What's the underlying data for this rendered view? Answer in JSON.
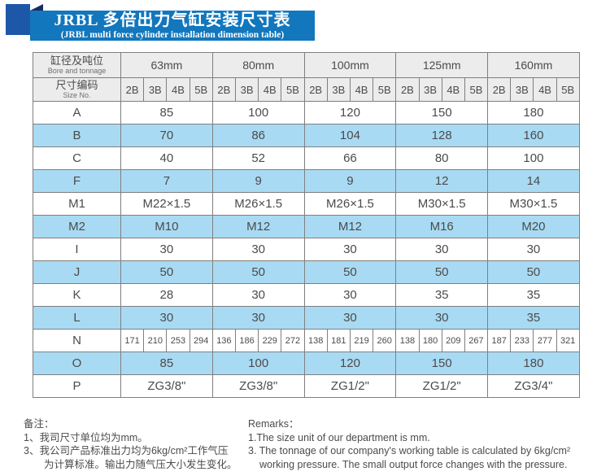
{
  "header": {
    "title_zh": "JRBL 多倍出力气缸安装尺寸表",
    "title_en": "(JRBL multi force cylinder installation dimension table)"
  },
  "table": {
    "corner": {
      "row1_zh": "缸径及吨位",
      "row1_en": "Bore and tonnage",
      "row2_zh": "尺寸编码",
      "row2_en": "Size No."
    },
    "bore_groups": [
      "63mm",
      "80mm",
      "100mm",
      "125mm",
      "160mm"
    ],
    "size_codes": [
      "2B",
      "3B",
      "4B",
      "5B"
    ],
    "rows": [
      {
        "label": "A",
        "span": "group",
        "values": [
          "85",
          "100",
          "120",
          "150",
          "180"
        ]
      },
      {
        "label": "B",
        "span": "group",
        "values": [
          "70",
          "86",
          "104",
          "128",
          "160"
        ]
      },
      {
        "label": "C",
        "span": "group",
        "values": [
          "40",
          "52",
          "66",
          "80",
          "100"
        ]
      },
      {
        "label": "F",
        "span": "group",
        "values": [
          "7",
          "9",
          "9",
          "12",
          "14"
        ]
      },
      {
        "label": "M1",
        "span": "group",
        "values": [
          "M22×1.5",
          "M26×1.5",
          "M26×1.5",
          "M30×1.5",
          "M30×1.5"
        ]
      },
      {
        "label": "M2",
        "span": "group",
        "values": [
          "M10",
          "M12",
          "M12",
          "M16",
          "M20"
        ]
      },
      {
        "label": "I",
        "span": "group",
        "values": [
          "30",
          "30",
          "30",
          "30",
          "30"
        ]
      },
      {
        "label": "J",
        "span": "group",
        "values": [
          "50",
          "50",
          "50",
          "50",
          "50"
        ]
      },
      {
        "label": "K",
        "span": "group",
        "values": [
          "28",
          "30",
          "30",
          "35",
          "35"
        ]
      },
      {
        "label": "L",
        "span": "group",
        "values": [
          "30",
          "30",
          "30",
          "30",
          "35"
        ]
      },
      {
        "label": "N",
        "span": "per_size",
        "values": [
          "171",
          "210",
          "253",
          "294",
          "136",
          "186",
          "229",
          "272",
          "138",
          "181",
          "219",
          "260",
          "138",
          "180",
          "209",
          "267",
          "187",
          "233",
          "277",
          "321"
        ]
      },
      {
        "label": "O",
        "span": "group",
        "values": [
          "85",
          "100",
          "120",
          "150",
          "180"
        ]
      },
      {
        "label": "P",
        "span": "group",
        "values": [
          "ZG3/8\"",
          "ZG3/8\"",
          "ZG1/2\"",
          "ZG1/2\"",
          "ZG3/4\""
        ]
      }
    ]
  },
  "notes": {
    "zh": {
      "heading": "备注：",
      "lines": [
        {
          "text": "1、我司尺寸单位均为mm。",
          "indent": false
        },
        {
          "text": "3、我公司产品标准出力均为6kg/cm²工作气压",
          "indent": false
        },
        {
          "text": "为计算标准。输出力随气压大小发生变化。",
          "indent": true
        }
      ]
    },
    "en": {
      "heading": "Remarks：",
      "lines": [
        {
          "text": "1.The size unit of our department is mm.",
          "indent": false
        },
        {
          "text": "3. The tonnage of our company's working table is calculated by 6kg/cm²",
          "indent": false
        },
        {
          "text": "working pressure. The small output force changes with the pressure.",
          "indent": true
        }
      ]
    }
  },
  "colors": {
    "banner_blue": "#1277bd",
    "square_blue": "#1d57a7",
    "fold_navy": "#1b2a66",
    "row_blue": "#a9daf3",
    "header_gray": "#ececec",
    "border_gray": "#7f7f7f",
    "text_gray": "#4b4b4b"
  }
}
